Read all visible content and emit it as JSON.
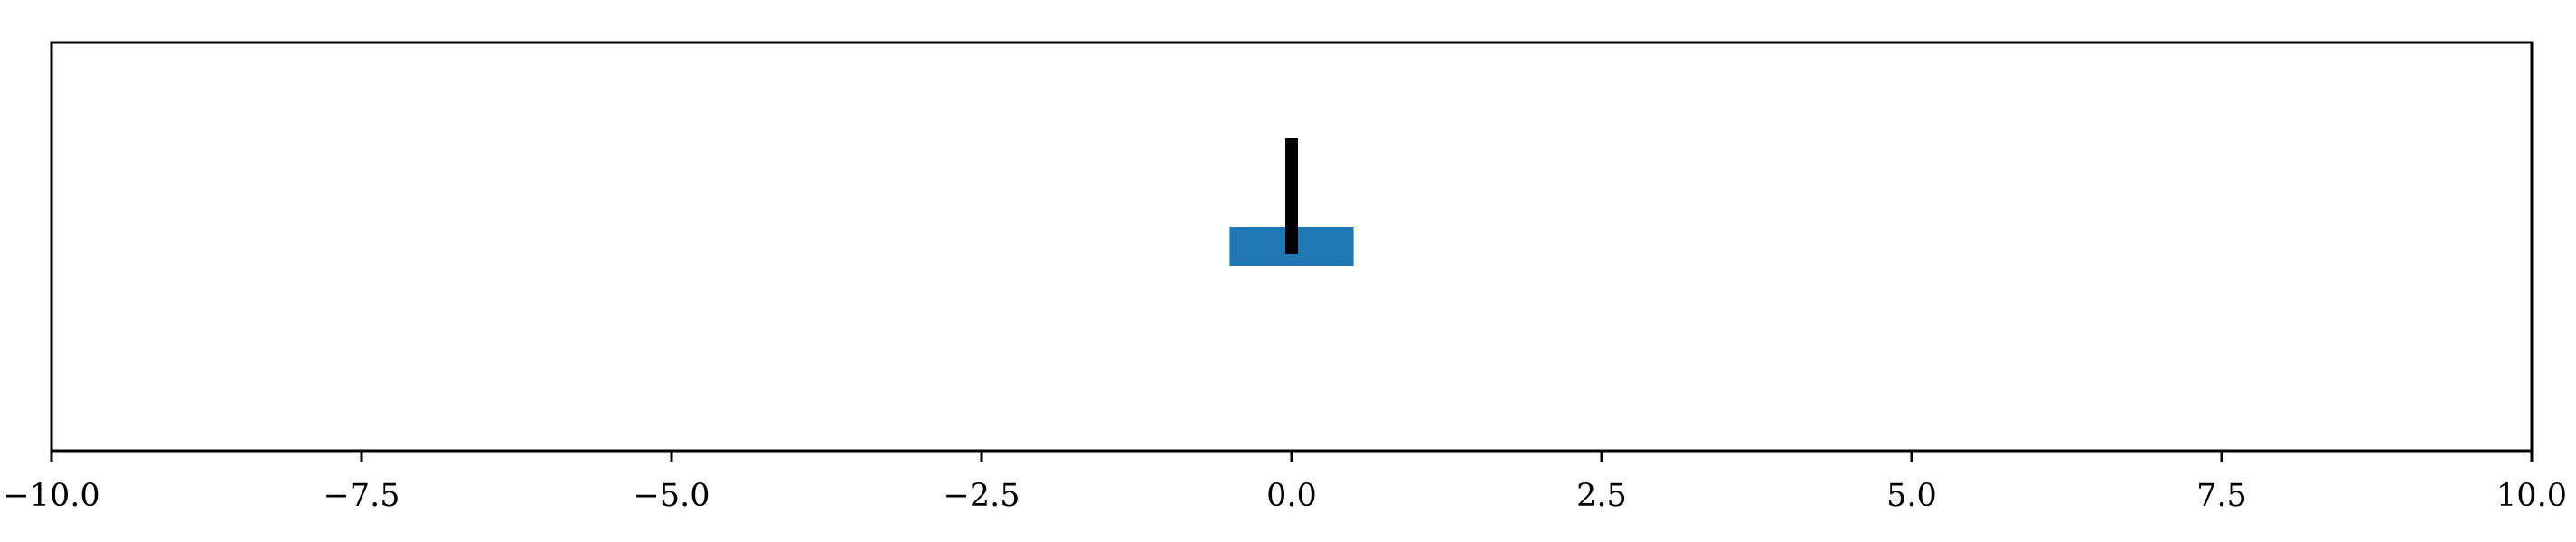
{
  "chart_data": {
    "type": "bar",
    "orientation": "horizontal",
    "title": "",
    "xlabel": "",
    "ylabel": "",
    "xlim": [
      -10.0,
      10.0
    ],
    "x_ticks": [
      -10.0,
      -7.5,
      -5.0,
      -2.5,
      0.0,
      2.5,
      5.0,
      7.5,
      10.0
    ],
    "x_tick_labels": [
      "−10.0",
      "−7.5",
      "−5.0",
      "−2.5",
      "0.0",
      "2.5",
      "5.0",
      "7.5",
      "10.0"
    ],
    "y_ticks_visible": false,
    "grid": false,
    "legend": false,
    "bars": [
      {
        "value": 0.0,
        "bar_start": -0.5,
        "bar_end": 0.5,
        "color": "#1f77b4"
      }
    ],
    "markers": [
      {
        "x": 0.0,
        "color": "#000000",
        "shape": "vertical-line"
      }
    ]
  }
}
